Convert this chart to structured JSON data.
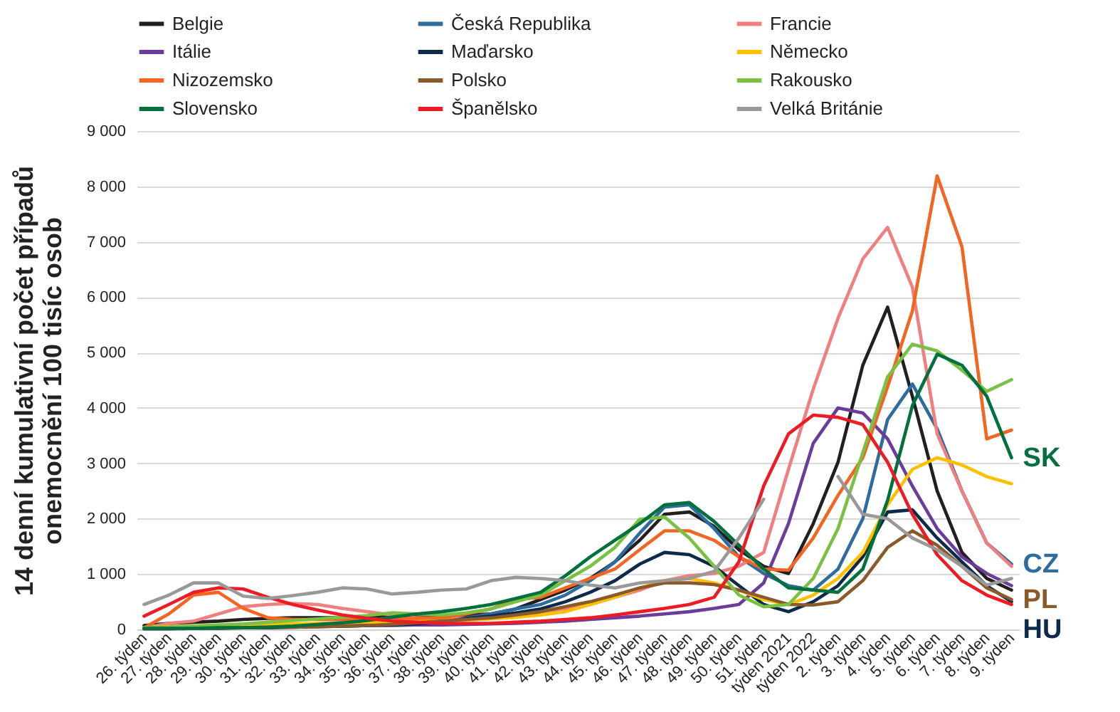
{
  "chart_data": {
    "type": "line",
    "ylabel": "14 denní kumulativní počet případů\nonemocnění 100 tisíc osob",
    "categories": [
      "26. týden",
      "27. týden",
      "28. týden",
      "29. týden",
      "30. týden",
      "31. týden",
      "32. týden",
      "33. týden",
      "34. týden",
      "35. týden",
      "36. týden",
      "37. týden",
      "38. týden",
      "39. týden",
      "40. týden",
      "41. týden",
      "42. týden",
      "43. týden",
      "44. týden",
      "45. týden",
      "46. týden",
      "47. týden",
      "48. týden",
      "49. týden",
      "50. týden",
      "51. týden",
      "týden 2021",
      "týden 2022",
      "2. týden",
      "3. týden",
      "4. týden",
      "5. týden",
      "6. týden",
      "7. týden",
      "8. týden",
      "9. týden"
    ],
    "series": [
      {
        "name": "Belgie",
        "color": "#231f20",
        "values": [
          70,
          110,
          130,
          150,
          180,
          200,
          210,
          210,
          210,
          230,
          230,
          230,
          240,
          260,
          280,
          370,
          540,
          710,
          920,
          1220,
          1610,
          2080,
          2120,
          1860,
          1440,
          1140,
          1010,
          1910,
          3020,
          4770,
          5820,
          4210,
          2500,
          1390,
          920,
          710
        ]
      },
      {
        "name": "Česká Republika",
        "color": "#2e6b9e",
        "values": [
          30,
          40,
          50,
          60,
          60,
          70,
          80,
          90,
          100,
          110,
          130,
          150,
          180,
          210,
          280,
          370,
          450,
          620,
          880,
          1220,
          1740,
          2210,
          2250,
          1820,
          1310,
          1010,
          790,
          710,
          1090,
          2000,
          3790,
          4430,
          3620,
          2500,
          1560,
          1180
        ]
      },
      {
        "name": "Francie",
        "color": "#f08080",
        "values": [
          30,
          110,
          150,
          280,
          410,
          450,
          470,
          450,
          380,
          320,
          260,
          210,
          200,
          200,
          210,
          260,
          320,
          370,
          450,
          580,
          710,
          880,
          970,
          1010,
          1140,
          1390,
          2890,
          4340,
          5620,
          6690,
          7260,
          6180,
          3530,
          2500,
          1560,
          1140
        ]
      },
      {
        "name": "Itálie",
        "color": "#6a3d9a",
        "values": [
          20,
          30,
          40,
          40,
          50,
          50,
          50,
          60,
          60,
          70,
          70,
          80,
          80,
          90,
          100,
          110,
          130,
          150,
          180,
          210,
          240,
          280,
          320,
          380,
          450,
          840,
          1910,
          3360,
          4000,
          3910,
          3440,
          2590,
          1820,
          1310,
          1010,
          790
        ]
      },
      {
        "name": "Maďarsko",
        "color": "#0d2a4a",
        "values": [
          10,
          10,
          20,
          20,
          30,
          30,
          40,
          50,
          60,
          70,
          80,
          100,
          130,
          200,
          240,
          300,
          370,
          500,
          670,
          880,
          1180,
          1390,
          1350,
          1140,
          790,
          450,
          320,
          500,
          790,
          1310,
          2120,
          2160,
          1650,
          1220,
          790,
          500
        ]
      },
      {
        "name": "Německo",
        "color": "#ffc000",
        "values": [
          30,
          50,
          60,
          70,
          80,
          90,
          100,
          110,
          120,
          130,
          140,
          150,
          160,
          170,
          190,
          220,
          260,
          320,
          450,
          580,
          750,
          880,
          920,
          840,
          710,
          540,
          450,
          620,
          920,
          1390,
          2250,
          2890,
          3100,
          2970,
          2760,
          2630
        ]
      },
      {
        "name": "Nizozemsko",
        "color": "#f26522",
        "values": [
          30,
          280,
          620,
          670,
          380,
          210,
          180,
          180,
          180,
          180,
          200,
          200,
          210,
          280,
          370,
          540,
          580,
          750,
          920,
          1090,
          1440,
          1780,
          1780,
          1610,
          1310,
          1090,
          1070,
          1650,
          2420,
          3100,
          4380,
          5750,
          8190,
          6910,
          3440,
          3600
        ]
      },
      {
        "name": "Polsko",
        "color": "#8b5a2b",
        "values": [
          20,
          20,
          20,
          30,
          30,
          40,
          40,
          50,
          60,
          70,
          90,
          120,
          150,
          180,
          210,
          260,
          320,
          410,
          500,
          620,
          750,
          840,
          840,
          810,
          710,
          580,
          450,
          440,
          500,
          880,
          1480,
          1780,
          1520,
          1140,
          750,
          540
        ]
      },
      {
        "name": "Rakousko",
        "color": "#7ac143",
        "values": [
          30,
          40,
          60,
          80,
          100,
          130,
          160,
          190,
          220,
          250,
          300,
          280,
          260,
          300,
          370,
          500,
          620,
          880,
          1140,
          1480,
          1990,
          2030,
          1650,
          1140,
          620,
          410,
          450,
          920,
          1820,
          3190,
          4560,
          5150,
          5030,
          4680,
          4300,
          4510
        ]
      },
      {
        "name": "Slovensko",
        "color": "#00703c",
        "values": [
          20,
          20,
          20,
          30,
          30,
          40,
          60,
          90,
          120,
          160,
          220,
          280,
          320,
          380,
          450,
          560,
          670,
          970,
          1310,
          1610,
          1910,
          2250,
          2290,
          1950,
          1520,
          1090,
          750,
          710,
          670,
          1090,
          2330,
          4040,
          4970,
          4770,
          4210,
          3100
        ]
      },
      {
        "name": "Španělsko",
        "color": "#ed1c24",
        "values": [
          240,
          450,
          670,
          750,
          730,
          580,
          450,
          350,
          260,
          200,
          150,
          130,
          110,
          110,
          110,
          130,
          150,
          180,
          210,
          260,
          320,
          380,
          450,
          580,
          1220,
          2590,
          3530,
          3870,
          3830,
          3700,
          3020,
          2080,
          1350,
          880,
          620,
          450
        ]
      },
      {
        "name": "Velká Británie",
        "color": "#999999",
        "values": [
          450,
          620,
          840,
          840,
          600,
          560,
          610,
          670,
          750,
          730,
          640,
          670,
          710,
          730,
          880,
          940,
          920,
          880,
          800,
          750,
          840,
          880,
          920,
          1050,
          1650,
          2350,
          null,
          null,
          2760,
          2080,
          2000,
          1650,
          1440,
          1140,
          800,
          920
        ]
      }
    ],
    "ylim": [
      0,
      9000
    ],
    "yticks": [
      0,
      1000,
      2000,
      3000,
      4000,
      5000,
      6000,
      7000,
      8000,
      9000
    ],
    "grid": "y",
    "legend": "top",
    "marker": "none",
    "line_style": "solid",
    "annotations": [
      {
        "text": "SK",
        "x": "9. týden",
        "y": 3100
      },
      {
        "text": "CZ",
        "x": "9. týden",
        "y": 1180
      },
      {
        "text": "PL",
        "x": "9. týden",
        "y": 540
      },
      {
        "text": "HU",
        "x": "9. týden",
        "y": 500
      }
    ]
  }
}
